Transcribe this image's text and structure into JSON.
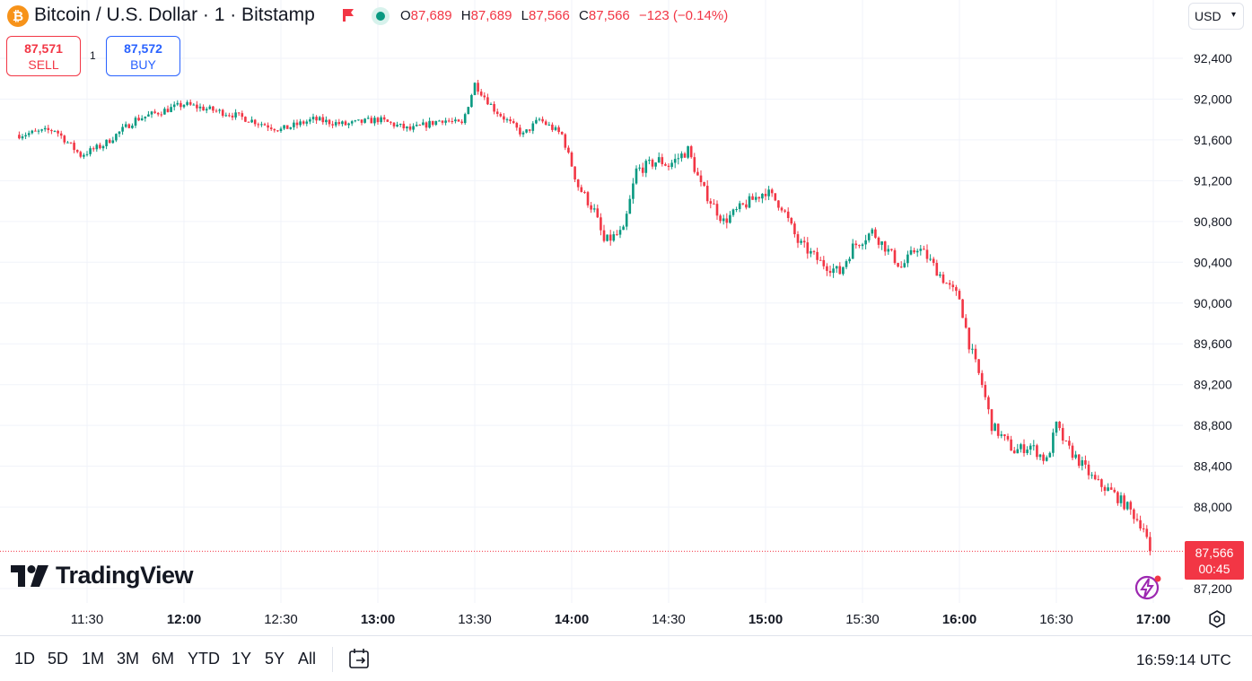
{
  "header": {
    "coin_glyph": "₿",
    "symbol_title": "Bitcoin / U.S. Dollar · 1 · Bitstamp",
    "ohlc": {
      "o_label": "O",
      "o": "87,689",
      "h_label": "H",
      "h": "87,689",
      "l_label": "L",
      "l": "87,566",
      "c_label": "C",
      "c": "87,566",
      "change": "−123 (−0.14%)"
    },
    "currency": "USD"
  },
  "trade": {
    "sell_price": "87,571",
    "sell_label": "SELL",
    "buy_price": "87,572",
    "buy_label": "BUY",
    "quantity": "1"
  },
  "price_tag": {
    "price": "87,566",
    "countdown": "00:45"
  },
  "logo_text": "TradingView",
  "range_buttons": [
    "1D",
    "5D",
    "1M",
    "3M",
    "6M",
    "YTD",
    "1Y",
    "5Y",
    "All"
  ],
  "clock": "16:59:14 UTC",
  "colors": {
    "up": "#089981",
    "down": "#f23645",
    "grid": "#f0f3fa",
    "accent": "#2962ff"
  },
  "icons": [
    "bitcoin-icon",
    "flag-icon",
    "status-dot-icon",
    "chevron-down-icon",
    "tradingview-logo-icon",
    "bolt-icon",
    "settings-icon",
    "goto-date-icon"
  ],
  "chart_data": {
    "type": "candlestick",
    "interval": "1 minute",
    "ylim": [
      87000,
      92700
    ],
    "y_ticks": [
      {
        "value": 92400,
        "label": "92,400"
      },
      {
        "value": 92000,
        "label": "92,000"
      },
      {
        "value": 91600,
        "label": "91,600"
      },
      {
        "value": 91200,
        "label": "91,200"
      },
      {
        "value": 90800,
        "label": "90,800"
      },
      {
        "value": 90400,
        "label": "90,400"
      },
      {
        "value": 90000,
        "label": "90,000"
      },
      {
        "value": 89600,
        "label": "89,600"
      },
      {
        "value": 89200,
        "label": "89,200"
      },
      {
        "value": 88800,
        "label": "88,800"
      },
      {
        "value": 88400,
        "label": "88,400"
      },
      {
        "value": 88000,
        "label": "88,000"
      },
      {
        "value": 87200,
        "label": "87,200"
      }
    ],
    "x_ticks": [
      {
        "time": "11:30",
        "bold": false
      },
      {
        "time": "12:00",
        "bold": true
      },
      {
        "time": "12:30",
        "bold": false
      },
      {
        "time": "13:00",
        "bold": true
      },
      {
        "time": "13:30",
        "bold": false
      },
      {
        "time": "14:00",
        "bold": true
      },
      {
        "time": "14:30",
        "bold": false
      },
      {
        "time": "15:00",
        "bold": true
      },
      {
        "time": "15:30",
        "bold": false
      },
      {
        "time": "16:00",
        "bold": true
      },
      {
        "time": "16:30",
        "bold": false
      },
      {
        "time": "17:00",
        "bold": true
      }
    ],
    "x_range": [
      "11:09",
      "17:04"
    ],
    "last_price": 87566,
    "close_path_times": [
      "11:09",
      "11:20",
      "11:28",
      "11:35",
      "11:45",
      "12:00",
      "12:15",
      "12:30",
      "12:40",
      "12:50",
      "13:00",
      "13:10",
      "13:20",
      "13:26",
      "13:30",
      "13:36",
      "13:45",
      "13:50",
      "13:57",
      "14:02",
      "14:07",
      "14:10",
      "14:16",
      "14:20",
      "14:27",
      "14:30",
      "14:36",
      "14:40",
      "14:47",
      "14:53",
      "15:00",
      "15:05",
      "15:10",
      "15:17",
      "15:23",
      "15:27",
      "15:33",
      "15:37",
      "15:42",
      "15:47",
      "15:50",
      "15:57",
      "16:00",
      "16:03",
      "16:07",
      "16:10",
      "16:17",
      "16:22",
      "16:27",
      "16:30",
      "16:33",
      "16:37",
      "16:42",
      "16:47",
      "16:52",
      "16:57",
      "16:59"
    ],
    "close_path_values": [
      91650,
      91700,
      91450,
      91550,
      91800,
      91950,
      91850,
      91700,
      91800,
      91750,
      91800,
      91700,
      91800,
      91750,
      92150,
      91900,
      91650,
      91800,
      91650,
      91150,
      90900,
      90600,
      90700,
      91300,
      91400,
      91350,
      91500,
      91150,
      90800,
      90950,
      91100,
      90950,
      90600,
      90400,
      90300,
      90550,
      90700,
      90550,
      90350,
      90550,
      90450,
      90150,
      90050,
      89600,
      89200,
      88800,
      88550,
      88600,
      88450,
      88800,
      88600,
      88450,
      88250,
      88150,
      88000,
      87800,
      87566
    ]
  }
}
